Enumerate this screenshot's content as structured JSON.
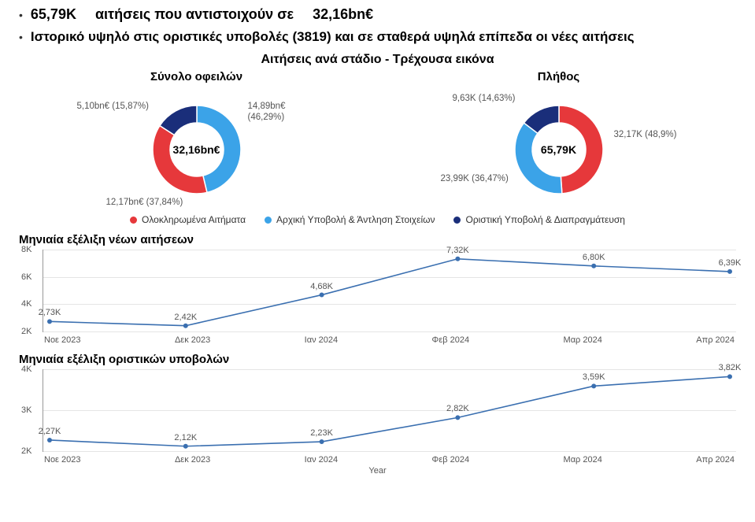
{
  "colors": {
    "red": "#e6383b",
    "light_blue": "#3ba3e8",
    "dark_blue": "#1a2e7a",
    "line": "#3a6fb0",
    "grid": "#e5e5e5",
    "axis": "#999999",
    "text": "#333333",
    "label": "#555555"
  },
  "headline": {
    "count": "65,79K",
    "mid_text": "αιτήσεις που αντιστοιχούν σε",
    "amount": "32,16bn€"
  },
  "subhead": "Ιστορικό υψηλό στις οριστικές υποβολές (3819) και σε σταθερά υψηλά επίπεδα οι νέες αιτήσεις",
  "section_title": "Αιτήσεις ανά στάδιο - Τρέχουσα εικόνα",
  "donut_left": {
    "title": "Σύνολο οφειλών",
    "center": "32,16bn€",
    "slices": [
      {
        "label": "14,89bn€",
        "pct_label": "(46,29%)",
        "value": 46.29,
        "color": "#3ba3e8"
      },
      {
        "label": "12,17bn€",
        "pct_label": "(37,84%)",
        "value": 37.84,
        "color": "#e6383b"
      },
      {
        "label": "5,10bn€",
        "pct_label": "(15,87%)",
        "value": 15.87,
        "color": "#1a2e7a"
      }
    ],
    "inner_radius": 34,
    "outer_radius": 56
  },
  "donut_right": {
    "title": "Πλήθος",
    "center": "65,79K",
    "slices": [
      {
        "label": "32,17K",
        "pct_label": "(48,9%)",
        "value": 48.9,
        "color": "#e6383b"
      },
      {
        "label": "23,99K",
        "pct_label": "(36,47%)",
        "value": 36.47,
        "color": "#3ba3e8"
      },
      {
        "label": "9,63K",
        "pct_label": "(14,63%)",
        "value": 14.63,
        "color": "#1a2e7a"
      }
    ],
    "inner_radius": 34,
    "outer_radius": 56
  },
  "legend": [
    {
      "color": "#e6383b",
      "text": "Ολοκληρωμένα Αιτήματα"
    },
    {
      "color": "#3ba3e8",
      "text": "Αρχική Υποβολή & Άντληση Στοιχείων"
    },
    {
      "color": "#1a2e7a",
      "text": "Οριστική Υποβολή & Διαπραγμάτευση"
    }
  ],
  "xaxis": {
    "title": "Year",
    "labels": [
      "Νοε 2023",
      "Δεκ 2023",
      "Ιαν 2024",
      "Φεβ 2024",
      "Μαρ 2024",
      "Απρ 2024"
    ]
  },
  "line1": {
    "title": "Μηνιαία εξέλιξη νέων αιτήσεων",
    "ylim": [
      2,
      8
    ],
    "yticks": [
      2,
      4,
      6,
      8
    ],
    "ytick_suffix": "K",
    "values": [
      2.73,
      2.42,
      4.68,
      7.32,
      6.8,
      6.39
    ],
    "point_labels": [
      "2,73K",
      "2,42K",
      "4,68K",
      "7,32K",
      "6,80K",
      "6,39K"
    ],
    "line_color": "#3a6fb0",
    "line_width": 1.6
  },
  "line2": {
    "title": "Μηνιαία εξέλιξη οριστικών υποβολών",
    "ylim": [
      2,
      4
    ],
    "yticks": [
      2,
      3,
      4
    ],
    "ytick_suffix": "K",
    "values": [
      2.27,
      2.12,
      2.23,
      2.82,
      3.59,
      3.82
    ],
    "point_labels": [
      "2,27K",
      "2,12K",
      "2,23K",
      "2,82K",
      "3,59K",
      "3,82K"
    ],
    "line_color": "#3a6fb0",
    "line_width": 1.6
  }
}
